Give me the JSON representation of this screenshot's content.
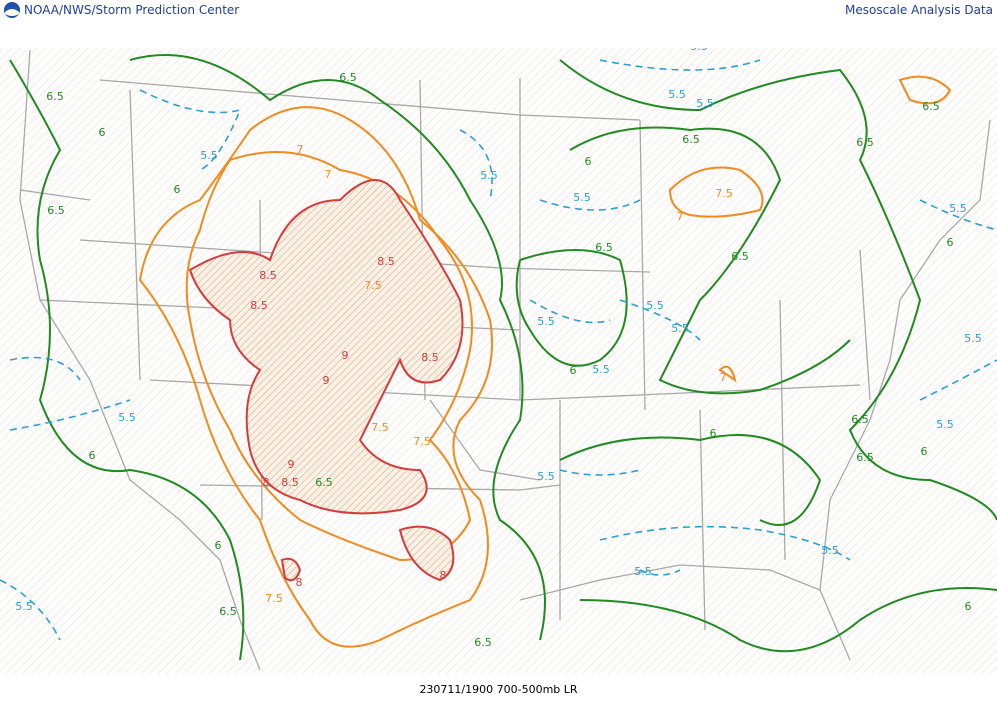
{
  "header": {
    "left": "NOAA/NWS/Storm Prediction Center",
    "right": "Mesoscale Analysis Data"
  },
  "footer": "230711/1900 700-500mb LR",
  "contour_labels": [
    "6.5",
    "6.5",
    "6",
    "6",
    "6.5",
    "5.5",
    "7",
    "7",
    "8.5",
    "8.5",
    "7.5",
    "8.5",
    "9",
    "9",
    "8.5",
    "7.5",
    "7.5",
    "9",
    "8",
    "8.5",
    "6.5",
    "8",
    "8",
    "7.5",
    "6.5",
    "6",
    "6.5",
    "5.5",
    "6",
    "5.5",
    "5.5",
    "5.5",
    "5.5",
    "6.5",
    "6",
    "5.5",
    "5.5",
    "6.5",
    "7",
    "7.5",
    "6.5",
    "5.5",
    "5.5",
    "5.5",
    "6",
    "5.5",
    "7",
    "6",
    "5.5",
    "5.5",
    "5.5",
    "6",
    "6.5",
    "6",
    "5.5",
    "5.5",
    "6.5",
    "6",
    "5.5",
    "6.5",
    "6.5"
  ]
}
